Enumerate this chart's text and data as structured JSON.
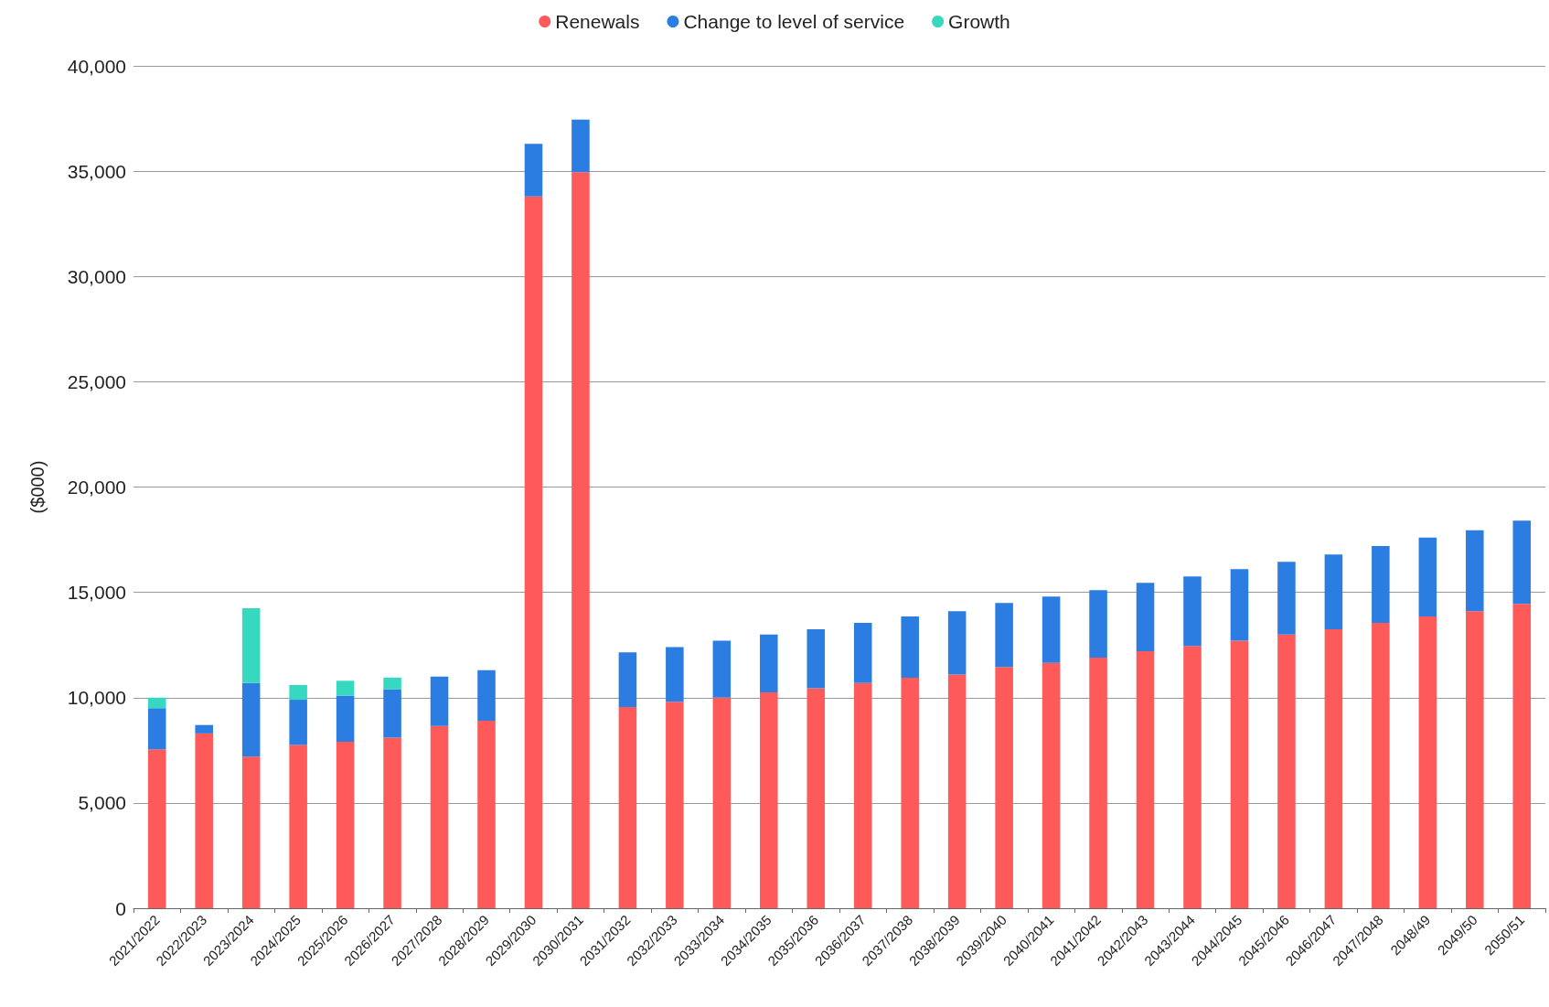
{
  "chart_data": {
    "type": "bar",
    "stacked": true,
    "ylabel": "($000)",
    "categories": [
      "2021/2022",
      "2022/2023",
      "2023/2024",
      "2024/2025",
      "2025/2026",
      "2026/2027",
      "2027/2028",
      "2028/2029",
      "2029/2030",
      "2030/2031",
      "2031/2032",
      "2032/2033",
      "2033/2034",
      "2034/2035",
      "2035/2036",
      "2036/2037",
      "2037/2038",
      "2038/2039",
      "2039/2040",
      "2040/2041",
      "2041/2042",
      "2042/2043",
      "2043/2044",
      "2044/2045",
      "2045/2046",
      "2046/2047",
      "2047/2048",
      "2048/49",
      "2049/50",
      "2050/51"
    ],
    "series": [
      {
        "name": "Renewals",
        "color": "#ff5a5a",
        "values": [
          7550,
          8300,
          7200,
          7750,
          7900,
          8100,
          8650,
          8900,
          33800,
          34950,
          9550,
          9800,
          10000,
          10250,
          10450,
          10700,
          10950,
          11100,
          11450,
          11650,
          11900,
          12200,
          12450,
          12700,
          13000,
          13250,
          13550,
          13850,
          14100,
          14450
        ]
      },
      {
        "name": "Change to level of service",
        "color": "#2b7de1",
        "values": [
          1950,
          400,
          3500,
          2150,
          2200,
          2300,
          2350,
          2400,
          2500,
          2500,
          2600,
          2600,
          2700,
          2750,
          2800,
          2850,
          2900,
          3000,
          3050,
          3150,
          3200,
          3250,
          3300,
          3400,
          3450,
          3550,
          3650,
          3750,
          3850,
          3950
        ]
      },
      {
        "name": "Growth",
        "color": "#36d9c0",
        "values": [
          500,
          0,
          3550,
          700,
          700,
          550,
          0,
          0,
          0,
          0,
          0,
          0,
          0,
          0,
          0,
          0,
          0,
          0,
          0,
          0,
          0,
          0,
          0,
          0,
          0,
          0,
          0,
          0,
          0,
          0
        ]
      }
    ],
    "ylim": [
      0,
      40000
    ],
    "yticks": [
      0,
      {
        "value": 5000,
        "label": "5,000"
      },
      {
        "value": 10000,
        "label": "10,000"
      },
      {
        "value": 15000,
        "label": "15,000"
      },
      {
        "value": 20000,
        "label": "20,000"
      },
      {
        "value": 25000,
        "label": "25,000"
      },
      {
        "value": 30000,
        "label": "30,000"
      },
      {
        "value": 35000,
        "label": "35,000"
      },
      {
        "value": 40000,
        "label": "40,000"
      }
    ],
    "grid": "y",
    "legend": "top"
  }
}
